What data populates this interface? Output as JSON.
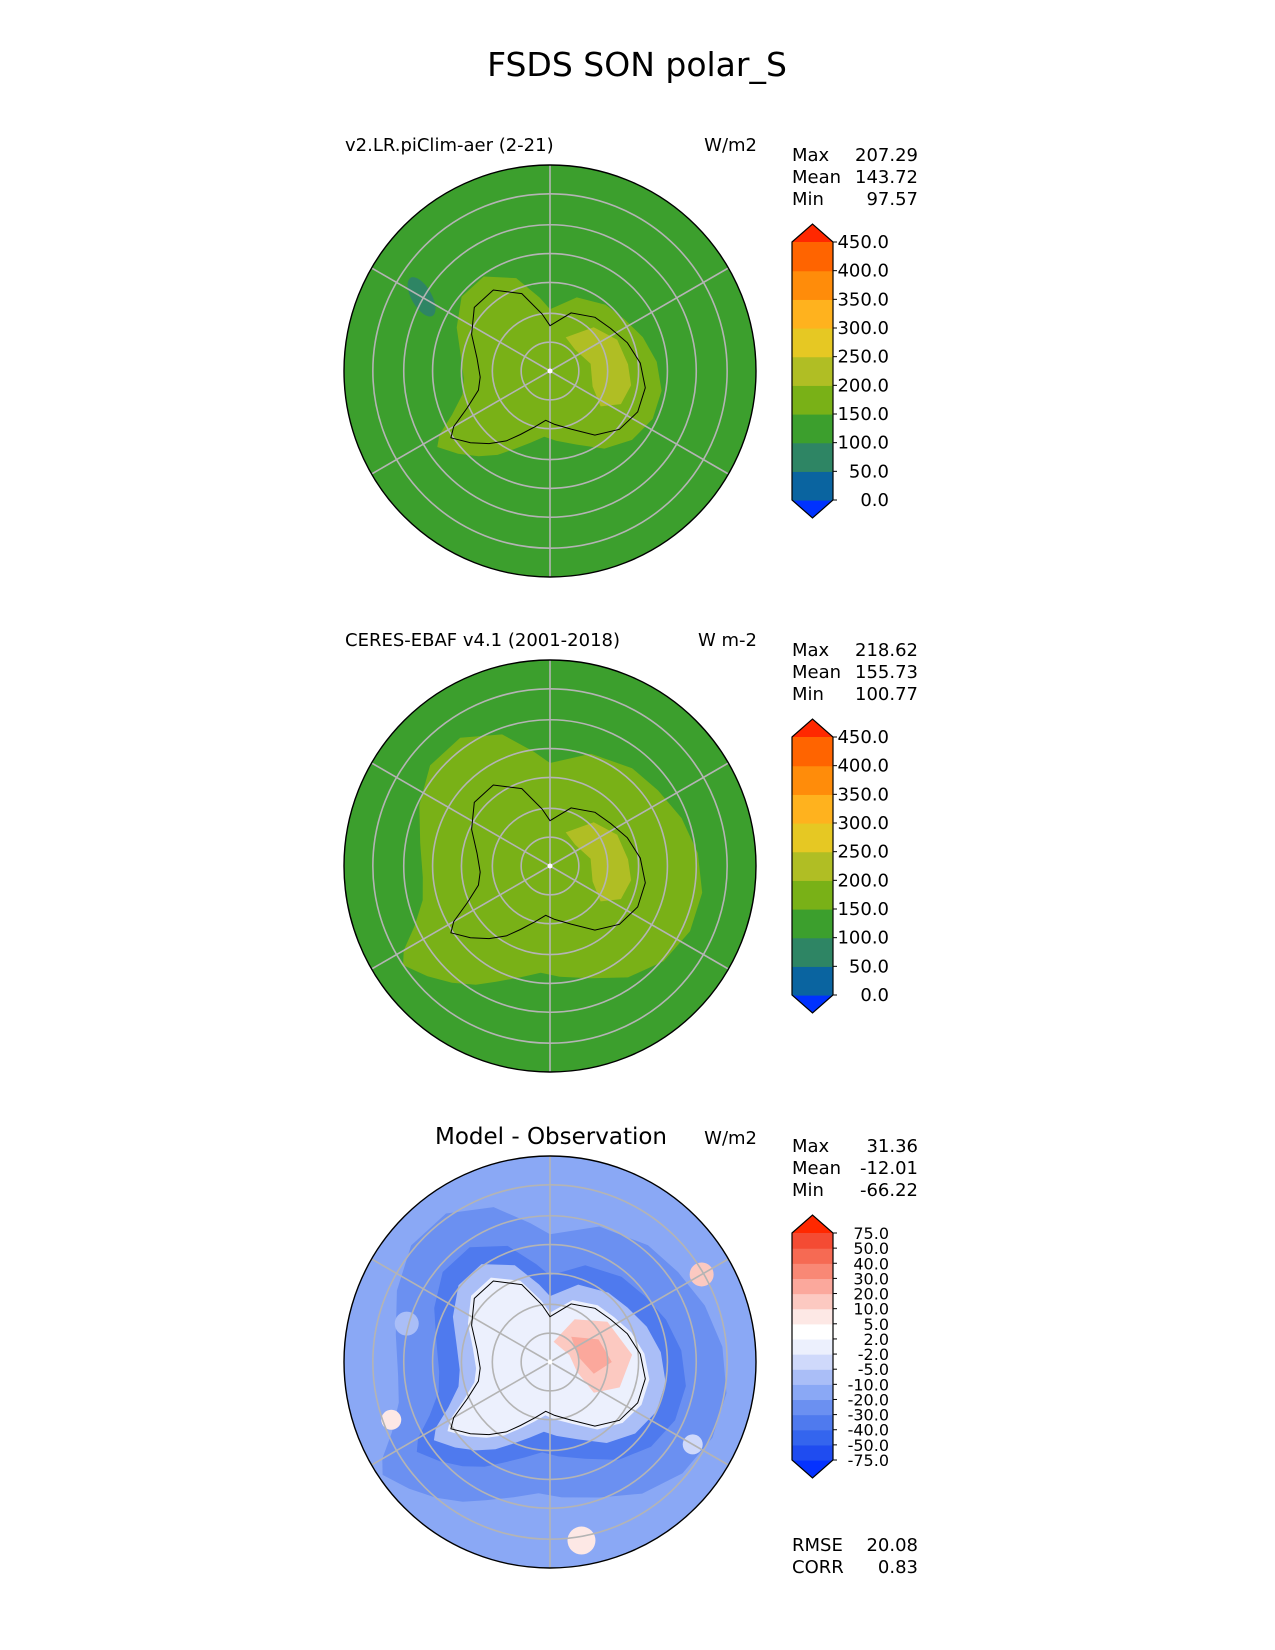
{
  "title": "FSDS SON polar_S",
  "chart_data": [
    {
      "type": "heatmap",
      "projection": "south-polar-stereographic",
      "title": "v2.LR.piClim-aer (2-21)",
      "units": "W/m2",
      "stats": [
        {
          "label": "Max",
          "value": "207.29"
        },
        {
          "label": "Mean",
          "value": "143.72"
        },
        {
          "label": "Min",
          "value": "97.57"
        }
      ],
      "colorbar": {
        "ticks": [
          "0.0",
          "50.0",
          "100.0",
          "150.0",
          "200.0",
          "250.0",
          "300.0",
          "350.0",
          "400.0",
          "450.0"
        ],
        "colors": [
          "#0032ff",
          "#0a64a0",
          "#2e8564",
          "#3c9f2d",
          "#79b117",
          "#b0be24",
          "#e6c823",
          "#ffb21e",
          "#ff8c0a",
          "#ff6400",
          "#ff2800"
        ],
        "extend": "both"
      },
      "field": {
        "ocean_value": 140,
        "continent_value": 170,
        "east_plateau_value": 215,
        "sea_low_value": 90
      }
    },
    {
      "type": "heatmap",
      "projection": "south-polar-stereographic",
      "title": "CERES-EBAF v4.1 (2001-2018)",
      "units": "W m-2",
      "stats": [
        {
          "label": "Max",
          "value": "218.62"
        },
        {
          "label": "Mean",
          "value": "155.73"
        },
        {
          "label": "Min",
          "value": "100.77"
        }
      ],
      "colorbar": {
        "ticks": [
          "0.0",
          "50.0",
          "100.0",
          "150.0",
          "200.0",
          "250.0",
          "300.0",
          "350.0",
          "400.0",
          "450.0"
        ],
        "colors": [
          "#0032ff",
          "#0a64a0",
          "#2e8564",
          "#3c9f2d",
          "#79b117",
          "#b0be24",
          "#e6c823",
          "#ffb21e",
          "#ff8c0a",
          "#ff6400",
          "#ff2800"
        ],
        "extend": "both"
      },
      "field": {
        "ocean_value": 140,
        "continent_value": 185,
        "east_plateau_value": 215,
        "ring_value": 175
      }
    },
    {
      "type": "heatmap",
      "projection": "south-polar-stereographic",
      "title": "Model - Observation",
      "units": "W/m2",
      "stats": [
        {
          "label": "Max",
          "value": "31.36"
        },
        {
          "label": "Mean",
          "value": "-12.01"
        },
        {
          "label": "Min",
          "value": "-66.22"
        }
      ],
      "extra_stats": [
        {
          "label": "RMSE",
          "value": "20.08"
        },
        {
          "label": "CORR",
          "value": "0.83"
        }
      ],
      "colorbar": {
        "ticks": [
          "-75.0",
          "-50.0",
          "-40.0",
          "-30.0",
          "-20.0",
          "-10.0",
          "-5.0",
          "-2.0",
          "2.0",
          "5.0",
          "10.0",
          "20.0",
          "30.0",
          "40.0",
          "50.0",
          "75.0"
        ],
        "colors": [
          "#0532ff",
          "#1f4cf0",
          "#3465ee",
          "#4f7aee",
          "#6b90f1",
          "#8aa8f5",
          "#aabef7",
          "#cfd9fb",
          "#ecf0fd",
          "#ffffff",
          "#fde8e5",
          "#fcc9c1",
          "#fba89c",
          "#f98875",
          "#f66a53",
          "#f44b33",
          "#ff2800"
        ],
        "extend": "both"
      }
    }
  ]
}
